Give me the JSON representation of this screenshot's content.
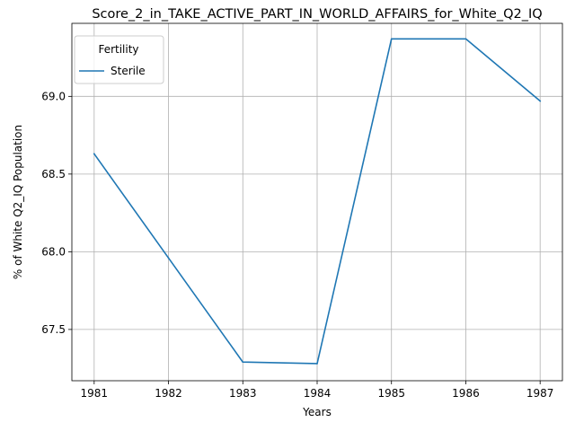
{
  "chart_data": {
    "type": "line",
    "title": "Score_2_in_TAKE_ACTIVE_PART_IN_WORLD_AFFAIRS_for_White_Q2_IQ",
    "xlabel": "Years",
    "ylabel": "% of White Q2_IQ Population",
    "x": [
      1981,
      1982,
      1983,
      1984,
      1985,
      1986,
      1987
    ],
    "xticks": [
      "1981",
      "1982",
      "1983",
      "1984",
      "1985",
      "1986",
      "1987"
    ],
    "yticks": [
      "67.5",
      "68.0",
      "68.5",
      "69.0"
    ],
    "xlim": [
      1980.7,
      1987.3
    ],
    "ylim": [
      67.17,
      69.47
    ],
    "grid": true,
    "legend": {
      "title": "Fertility",
      "placement": "top-left"
    },
    "series": [
      {
        "name": "Sterile",
        "color": "#1f77b4",
        "values": [
          68.63,
          67.96,
          67.29,
          67.28,
          69.37,
          69.37,
          68.97
        ]
      }
    ]
  }
}
